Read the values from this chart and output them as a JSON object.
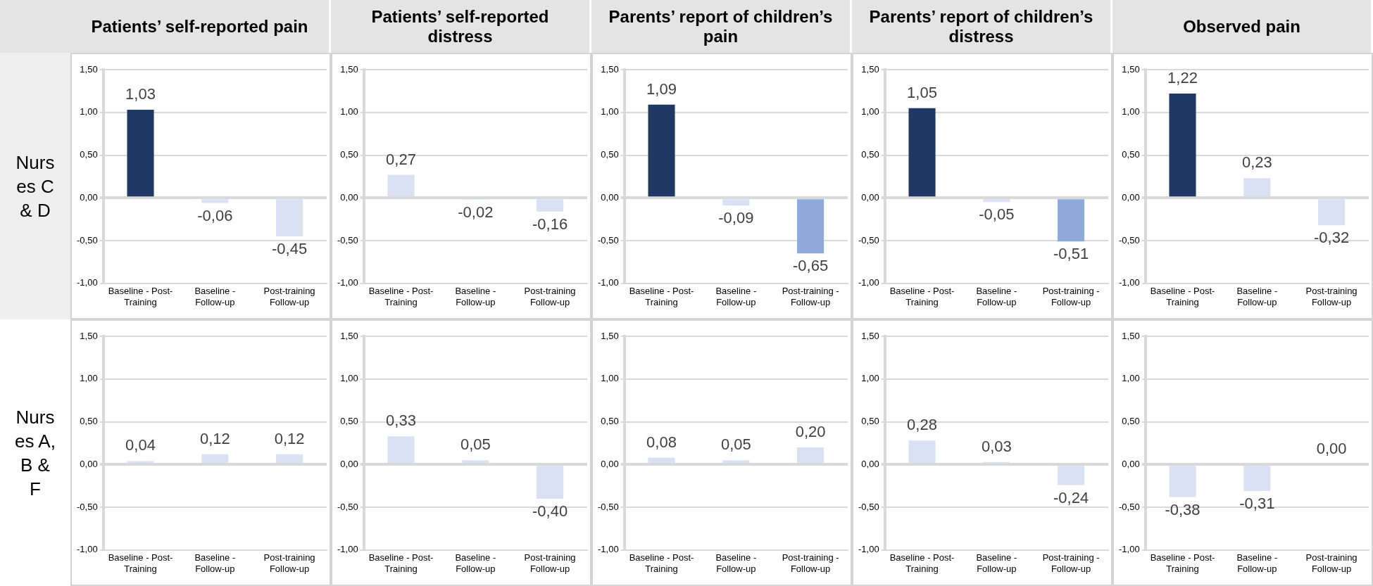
{
  "chart_data": [
    {
      "type": "bar",
      "title": "Patients’ self-reported pain",
      "subtitle": "Nurses C & D",
      "categories": [
        "Baseline - Post-Training",
        "Baseline - Follow-up",
        "Post-training Follow-up"
      ],
      "values": [
        1.03,
        -0.06,
        -0.45
      ],
      "value_labels": [
        "1,03",
        "-0,06",
        "-0,45"
      ],
      "colors": [
        "#1f3864",
        "#d9e1f2",
        "#d9e1f2"
      ],
      "ylim": [
        -1,
        1.5
      ],
      "yticks": [
        {
          "value": -1,
          "label": "-1,00"
        },
        {
          "value": -0.5,
          "label": "-0,50"
        },
        {
          "value": 0,
          "label": "0,00"
        },
        {
          "value": 0.5,
          "label": "0,50"
        },
        {
          "value": 1,
          "label": "1,00"
        },
        {
          "value": 1.5,
          "label": "1,50"
        }
      ],
      "grid": "y"
    },
    {
      "type": "bar",
      "title": "Patients’ self-reported distress",
      "categories": [
        "Baseline - Post-Training",
        "Baseline - Follow-up",
        "Post-training Follow-up"
      ],
      "values": [
        0.27,
        -0.02,
        -0.16
      ],
      "value_labels": [
        "0,27",
        "-0,02",
        "-0,16"
      ],
      "colors": [
        "#d9e1f2",
        "#d9e1f2",
        "#d9e1f2"
      ],
      "ylim": [
        -1,
        1.5
      ],
      "yticks": [
        {
          "value": -1,
          "label": "-1,00"
        },
        {
          "value": -0.5,
          "label": "-0,50"
        },
        {
          "value": 0,
          "label": "0,00"
        },
        {
          "value": 0.5,
          "label": "0,50"
        },
        {
          "value": 1,
          "label": "1,00"
        },
        {
          "value": 1.5,
          "label": "1,50"
        }
      ],
      "grid": "y"
    },
    {
      "type": "bar",
      "title": "Parents’ report of children’s pain",
      "categories": [
        "Baseline - Post-Training",
        "Baseline - Follow-up",
        "Post-training - Follow-up"
      ],
      "values": [
        1.09,
        -0.09,
        -0.65
      ],
      "value_labels": [
        "1,09",
        "-0,09",
        "-0,65"
      ],
      "colors": [
        "#1f3864",
        "#d9e1f2",
        "#8eaadb"
      ],
      "ylim": [
        -1,
        1.5
      ],
      "yticks": [
        {
          "value": -1,
          "label": "-1,00"
        },
        {
          "value": -0.5,
          "label": "-0,50"
        },
        {
          "value": 0,
          "label": "0,00"
        },
        {
          "value": 0.5,
          "label": "0,50"
        },
        {
          "value": 1,
          "label": "1,00"
        },
        {
          "value": 1.5,
          "label": "1,50"
        }
      ],
      "grid": "y"
    },
    {
      "type": "bar",
      "title": "Parents’ report of children’s distress",
      "categories": [
        "Baseline - Post-Training",
        "Baseline - Follow-up",
        "Post-training - Follow-up"
      ],
      "values": [
        1.05,
        -0.05,
        -0.51
      ],
      "value_labels": [
        "1,05",
        "-0,05",
        "-0,51"
      ],
      "colors": [
        "#1f3864",
        "#d9e1f2",
        "#8eaadb"
      ],
      "ylim": [
        -1,
        1.5
      ],
      "yticks": [
        {
          "value": -1,
          "label": "-1,00"
        },
        {
          "value": -0.5,
          "label": "-0,50"
        },
        {
          "value": 0,
          "label": "0,00"
        },
        {
          "value": 0.5,
          "label": "0,50"
        },
        {
          "value": 1,
          "label": "1,00"
        },
        {
          "value": 1.5,
          "label": "1,50"
        }
      ],
      "grid": "y"
    },
    {
      "type": "bar",
      "title": "Observed pain",
      "categories": [
        "Baseline - Post-Training",
        "Baseline - Follow-up",
        "Post-training Follow-up"
      ],
      "values": [
        1.22,
        0.23,
        -0.32
      ],
      "value_labels": [
        "1,22",
        "0,23",
        "-0,32"
      ],
      "colors": [
        "#1f3864",
        "#d9e1f2",
        "#d9e1f2"
      ],
      "ylim": [
        -1,
        1.5
      ],
      "yticks": [
        {
          "value": -1,
          "label": "-1,00"
        },
        {
          "value": -0.5,
          "label": "-0,50"
        },
        {
          "value": 0,
          "label": "0,00"
        },
        {
          "value": 0.5,
          "label": "0,50"
        },
        {
          "value": 1,
          "label": "1,00"
        },
        {
          "value": 1.5,
          "label": "1,50"
        }
      ],
      "grid": "y"
    },
    {
      "type": "bar",
      "subtitle": "Nurses A, B & F",
      "categories": [
        "Baseline - Post-Training",
        "Baseline - Follow-up",
        "Post-training Follow-up"
      ],
      "values": [
        0.04,
        0.12,
        0.12
      ],
      "value_labels": [
        "0,04",
        "0,12",
        "0,12"
      ],
      "colors": [
        "#d9e1f2",
        "#d9e1f2",
        "#d9e1f2"
      ],
      "ylim": [
        -1,
        1.5
      ],
      "yticks": [
        {
          "value": -1,
          "label": "-1,00"
        },
        {
          "value": -0.5,
          "label": "-0,50"
        },
        {
          "value": 0,
          "label": "0,00"
        },
        {
          "value": 0.5,
          "label": "0,50"
        },
        {
          "value": 1,
          "label": "1,00"
        },
        {
          "value": 1.5,
          "label": "1,50"
        }
      ],
      "grid": "y"
    },
    {
      "type": "bar",
      "categories": [
        "Baseline - Post-Training",
        "Baseline - Follow-up",
        "Post-training Follow-up"
      ],
      "values": [
        0.33,
        0.05,
        -0.4
      ],
      "value_labels": [
        "0,33",
        "0,05",
        "-0,40"
      ],
      "colors": [
        "#d9e1f2",
        "#d9e1f2",
        "#d9e1f2"
      ],
      "ylim": [
        -1,
        1.5
      ],
      "yticks": [
        {
          "value": -1,
          "label": "-1,00"
        },
        {
          "value": -0.5,
          "label": "-0,50"
        },
        {
          "value": 0,
          "label": "0,00"
        },
        {
          "value": 0.5,
          "label": "0,50"
        },
        {
          "value": 1,
          "label": "1,00"
        },
        {
          "value": 1.5,
          "label": "1,50"
        }
      ],
      "grid": "y"
    },
    {
      "type": "bar",
      "categories": [
        "Baseline - Post-Training",
        "Baseline - Follow-up",
        "Post-training - Follow-up"
      ],
      "values": [
        0.08,
        0.05,
        0.2
      ],
      "value_labels": [
        "0,08",
        "0,05",
        "0,20"
      ],
      "colors": [
        "#d9e1f2",
        "#d9e1f2",
        "#d9e1f2"
      ],
      "ylim": [
        -1,
        1.5
      ],
      "yticks": [
        {
          "value": -1,
          "label": "-1,00"
        },
        {
          "value": -0.5,
          "label": "-0,50"
        },
        {
          "value": 0,
          "label": "0,00"
        },
        {
          "value": 0.5,
          "label": "0,50"
        },
        {
          "value": 1,
          "label": "1,00"
        },
        {
          "value": 1.5,
          "label": "1,50"
        }
      ],
      "grid": "y"
    },
    {
      "type": "bar",
      "categories": [
        "Baseline - Post-Training",
        "Baseline - Follow-up",
        "Post-training - Follow-up"
      ],
      "values": [
        0.28,
        0.03,
        -0.24
      ],
      "value_labels": [
        "0,28",
        "0,03",
        "-0,24"
      ],
      "colors": [
        "#d9e1f2",
        "#d9e1f2",
        "#d9e1f2"
      ],
      "ylim": [
        -1,
        1.5
      ],
      "yticks": [
        {
          "value": -1,
          "label": "-1,00"
        },
        {
          "value": -0.5,
          "label": "-0,50"
        },
        {
          "value": 0,
          "label": "0,00"
        },
        {
          "value": 0.5,
          "label": "0,50"
        },
        {
          "value": 1,
          "label": "1,00"
        },
        {
          "value": 1.5,
          "label": "1,50"
        }
      ],
      "grid": "y"
    },
    {
      "type": "bar",
      "categories": [
        "Baseline - Post-Training",
        "Baseline - Follow-up",
        "Post-training Follow-up"
      ],
      "values": [
        -0.38,
        -0.31,
        0
      ],
      "value_labels": [
        "-0,38",
        "-0,31",
        "0,00"
      ],
      "colors": [
        "#d9e1f2",
        "#d9e1f2",
        "#d9e1f2"
      ],
      "ylim": [
        -1,
        1.5
      ],
      "yticks": [
        {
          "value": -1,
          "label": "-1,00"
        },
        {
          "value": -0.5,
          "label": "-0,50"
        },
        {
          "value": 0,
          "label": "0,00"
        },
        {
          "value": 0.5,
          "label": "0,50"
        },
        {
          "value": 1,
          "label": "1,00"
        },
        {
          "value": 1.5,
          "label": "1,50"
        }
      ],
      "grid": "y"
    }
  ]
}
